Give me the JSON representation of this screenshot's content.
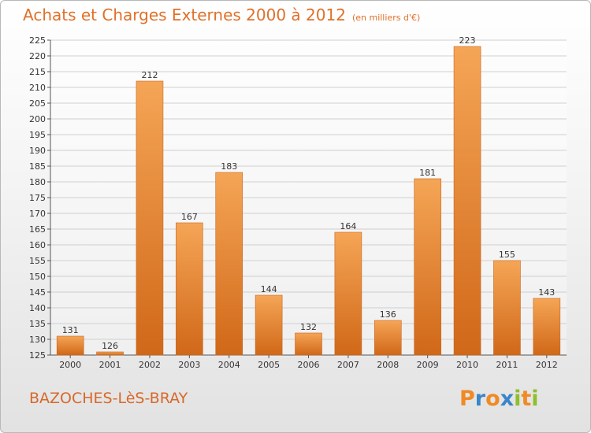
{
  "title": "Achats et Charges Externes 2000 à 2012",
  "unit_note": "(en milliers d'€)",
  "town": "BAZOCHES-LèS-BRAY",
  "logo": {
    "letters": [
      "P",
      "r",
      "o",
      "x",
      "i",
      "t",
      "i"
    ],
    "colors": [
      "#f08a25",
      "#3a86c8",
      "#f08a25",
      "#3a86c8",
      "#8fbf2a",
      "#f08a25",
      "#8fbf2a"
    ]
  },
  "colors": {
    "title": "#e0702a",
    "bar_light": "#f5a556",
    "bar_dark": "#d06818",
    "grid": "#cfcfcf"
  },
  "chart_data": {
    "type": "bar",
    "title": "Achats et Charges Externes 2000 à 2012",
    "categories": [
      "2000",
      "2001",
      "2002",
      "2003",
      "2004",
      "2005",
      "2006",
      "2007",
      "2008",
      "2009",
      "2010",
      "2011",
      "2012"
    ],
    "values": [
      131,
      126,
      212,
      167,
      183,
      144,
      132,
      164,
      136,
      181,
      223,
      155,
      143
    ],
    "ylim": [
      125,
      225
    ],
    "yticks": [
      125,
      130,
      135,
      140,
      145,
      150,
      155,
      160,
      165,
      170,
      175,
      180,
      185,
      190,
      195,
      200,
      205,
      210,
      215,
      220,
      225
    ],
    "grid": true,
    "data_labels": true
  }
}
